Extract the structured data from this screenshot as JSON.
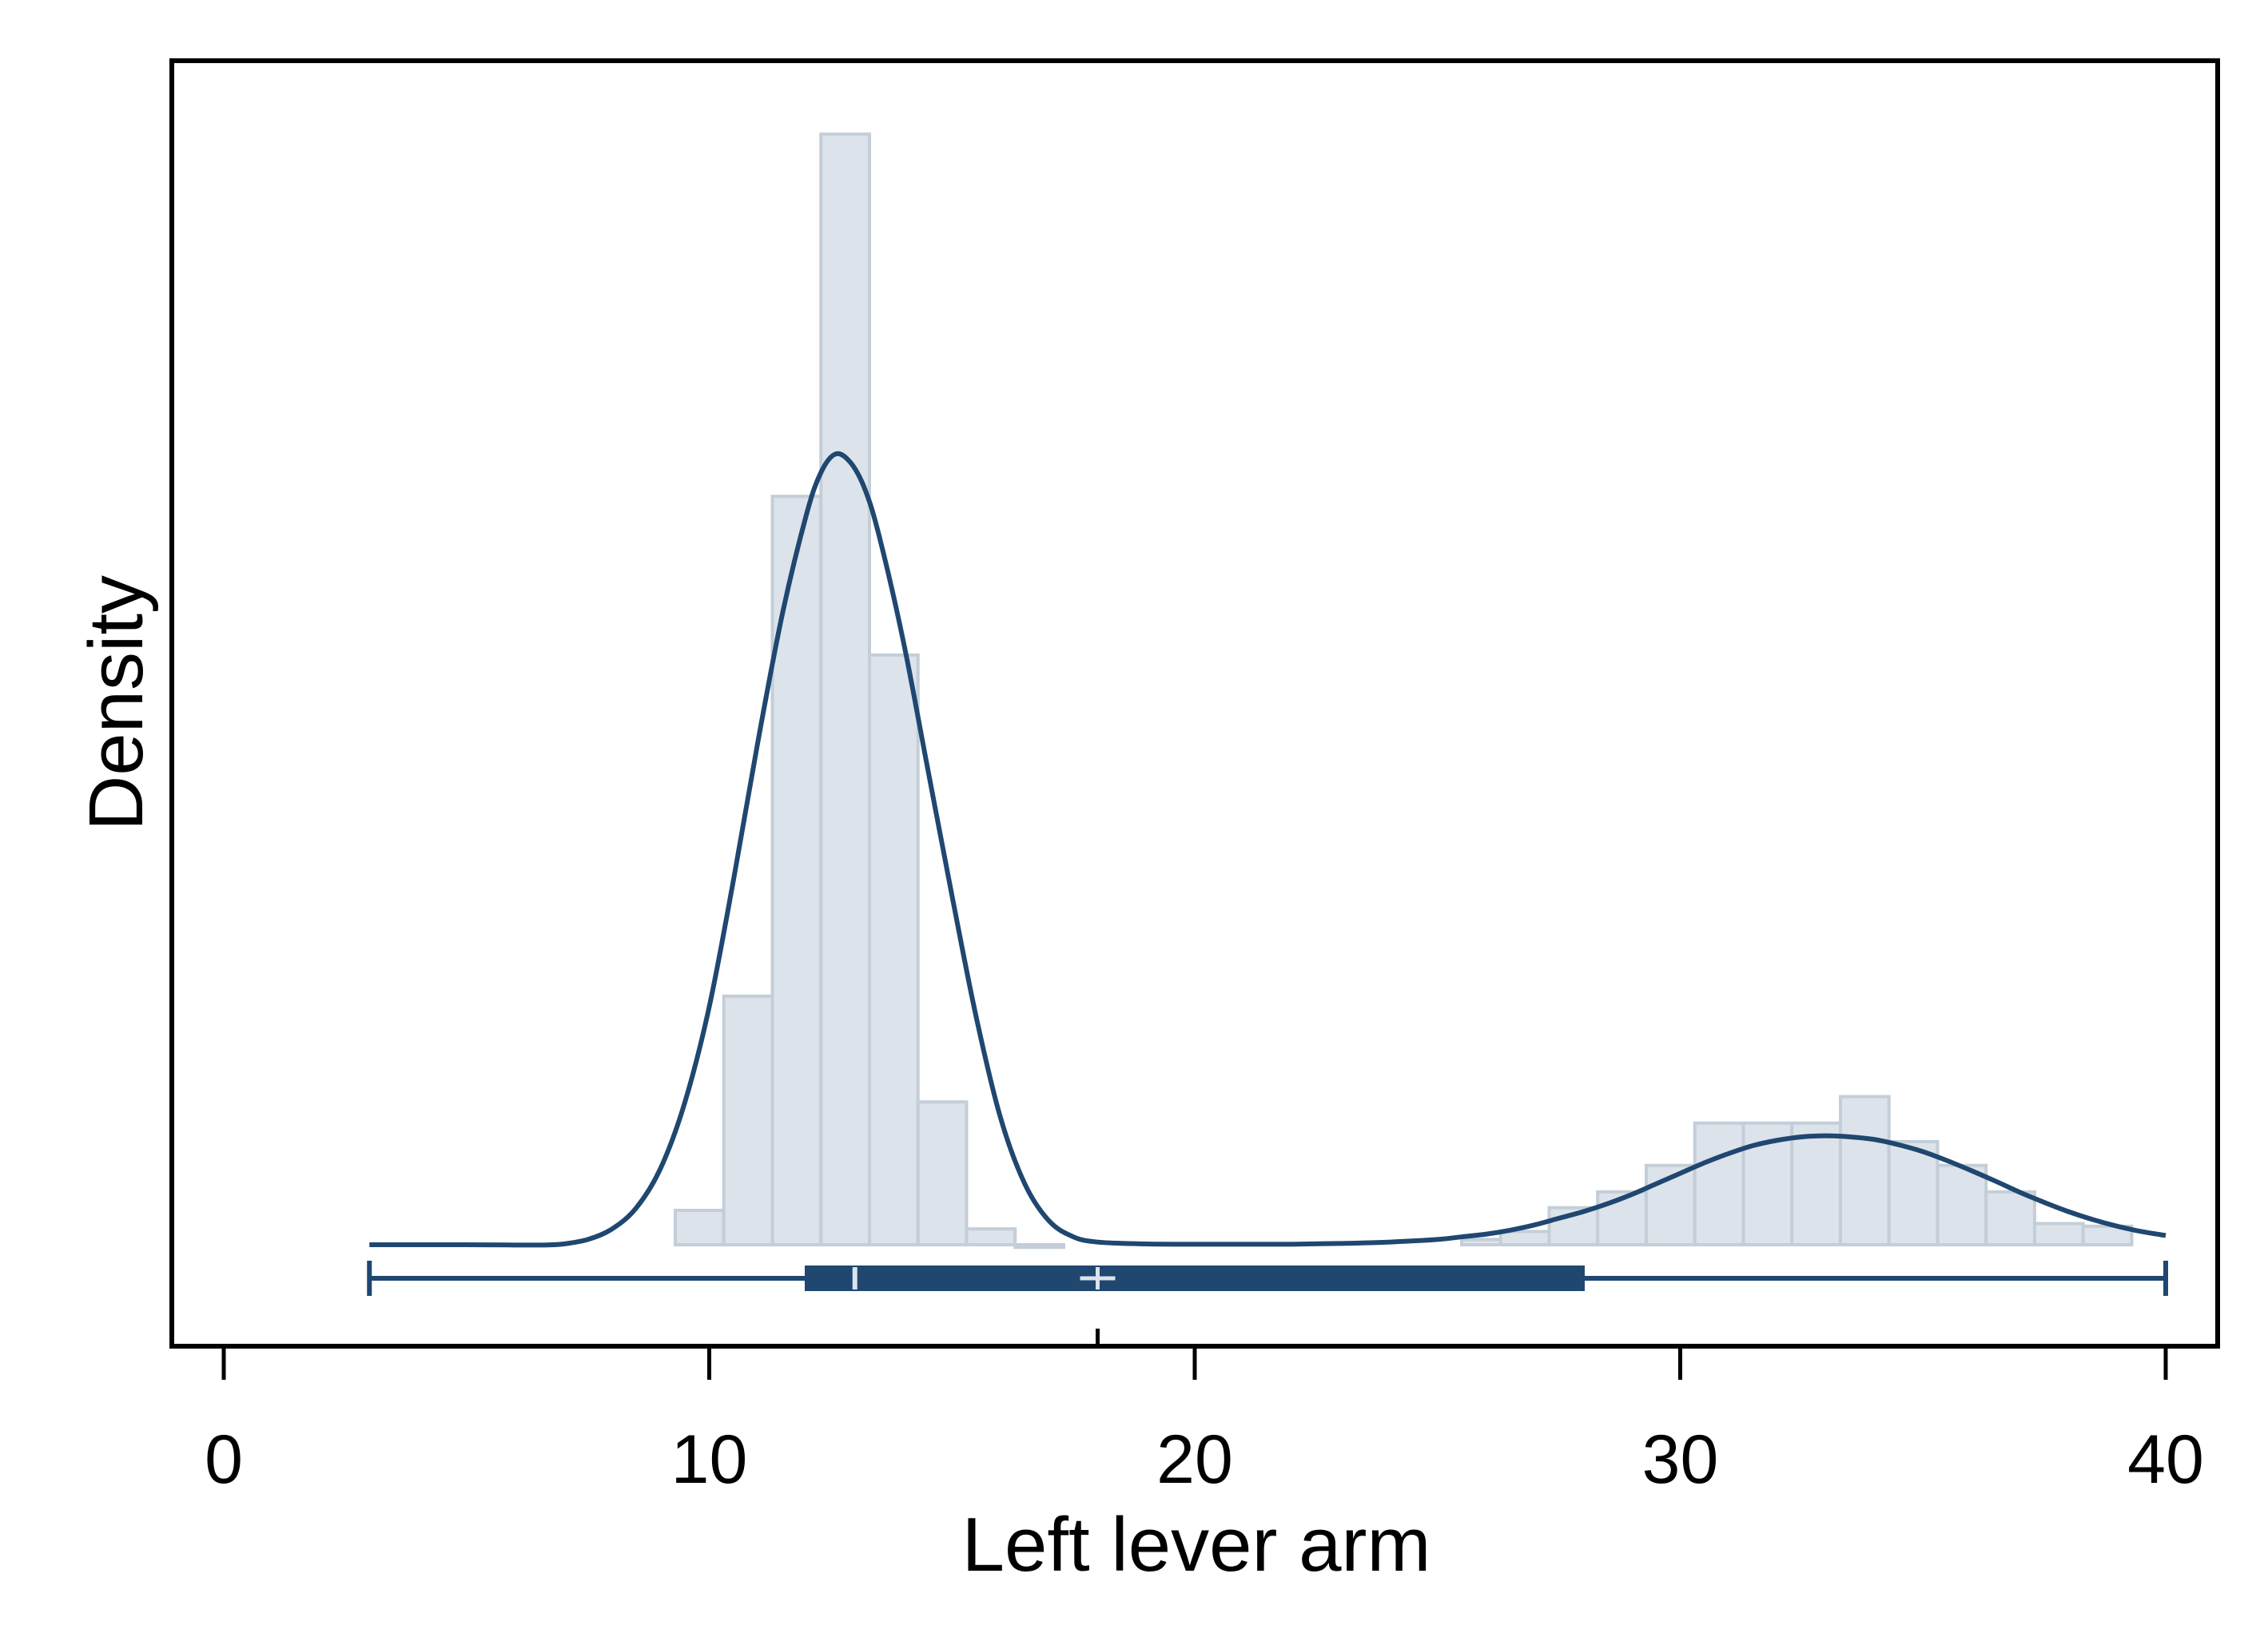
{
  "chart_data": {
    "type": "histogram",
    "title": "",
    "xlabel": "Left lever arm",
    "ylabel": "Density",
    "xlim": [
      -1,
      41
    ],
    "x_ticks": [
      0,
      10,
      20,
      30,
      40
    ],
    "x_tick_labels": [
      "0",
      "10",
      "20",
      "30",
      "40"
    ],
    "y_ticks_shown": false,
    "grid": false,
    "legend": "none",
    "histogram": {
      "bin_width": 1.0,
      "bins": [
        {
          "start": 9.3,
          "end": 10.3,
          "density": 0.013
        },
        {
          "start": 10.3,
          "end": 11.3,
          "density": 0.094
        },
        {
          "start": 11.3,
          "end": 12.3,
          "density": 0.283
        },
        {
          "start": 12.3,
          "end": 13.3,
          "density": 0.42
        },
        {
          "start": 13.3,
          "end": 14.3,
          "density": 0.223
        },
        {
          "start": 14.3,
          "end": 15.3,
          "density": 0.054
        },
        {
          "start": 15.3,
          "end": 16.3,
          "density": 0.006
        },
        {
          "start": 16.3,
          "end": 17.3,
          "density": -0.001
        },
        {
          "start": 25.5,
          "end": 26.3,
          "density": 0.002
        },
        {
          "start": 26.3,
          "end": 27.3,
          "density": 0.005
        },
        {
          "start": 27.3,
          "end": 28.3,
          "density": 0.014
        },
        {
          "start": 28.3,
          "end": 29.3,
          "density": 0.02
        },
        {
          "start": 29.3,
          "end": 30.3,
          "density": 0.03
        },
        {
          "start": 30.3,
          "end": 31.3,
          "density": 0.046
        },
        {
          "start": 31.3,
          "end": 32.3,
          "density": 0.046
        },
        {
          "start": 32.3,
          "end": 33.3,
          "density": 0.046
        },
        {
          "start": 33.3,
          "end": 34.3,
          "density": 0.056
        },
        {
          "start": 34.3,
          "end": 35.3,
          "density": 0.039
        },
        {
          "start": 35.3,
          "end": 36.3,
          "density": 0.03
        },
        {
          "start": 36.3,
          "end": 37.3,
          "density": 0.02
        },
        {
          "start": 37.3,
          "end": 38.3,
          "density": 0.008
        },
        {
          "start": 38.3,
          "end": 39.3,
          "density": 0.007
        }
      ],
      "fill_color": "#dce3ea",
      "edge_color": "#c3ced8"
    },
    "density_curve": {
      "color": "#1f4770",
      "points": [
        [
          3.0,
          0.0
        ],
        [
          4.0,
          0.0
        ],
        [
          5.0,
          0.0
        ],
        [
          6.0,
          -0.0001
        ],
        [
          6.6,
          -0.0001
        ],
        [
          7.0,
          0.0003
        ],
        [
          7.5,
          0.002
        ],
        [
          8.0,
          0.006
        ],
        [
          8.5,
          0.014
        ],
        [
          9.0,
          0.029
        ],
        [
          9.5,
          0.054
        ],
        [
          10.0,
          0.09
        ],
        [
          10.5,
          0.138
        ],
        [
          11.0,
          0.19
        ],
        [
          11.5,
          0.238
        ],
        [
          12.0,
          0.276
        ],
        [
          12.3,
          0.292
        ],
        [
          12.6,
          0.299
        ],
        [
          12.9,
          0.296
        ],
        [
          13.2,
          0.286
        ],
        [
          13.5,
          0.268
        ],
        [
          14.0,
          0.228
        ],
        [
          14.5,
          0.18
        ],
        [
          15.0,
          0.132
        ],
        [
          15.5,
          0.086
        ],
        [
          16.0,
          0.048
        ],
        [
          16.5,
          0.023
        ],
        [
          17.0,
          0.009
        ],
        [
          17.5,
          0.003
        ],
        [
          18.0,
          0.001
        ],
        [
          19.0,
          0.0003
        ],
        [
          20.0,
          0.0002
        ],
        [
          21.0,
          0.0002
        ],
        [
          22.0,
          0.0002
        ],
        [
          23.0,
          0.0005
        ],
        [
          24.0,
          0.001
        ],
        [
          25.0,
          0.002
        ],
        [
          25.5,
          0.003
        ],
        [
          26.0,
          0.004
        ],
        [
          26.5,
          0.0055
        ],
        [
          27.0,
          0.0075
        ],
        [
          27.5,
          0.01
        ],
        [
          28.0,
          0.0125
        ],
        [
          28.5,
          0.0155
        ],
        [
          29.0,
          0.019
        ],
        [
          29.5,
          0.023
        ],
        [
          30.0,
          0.027
        ],
        [
          30.5,
          0.031
        ],
        [
          31.0,
          0.0345
        ],
        [
          31.5,
          0.0375
        ],
        [
          32.0,
          0.0395
        ],
        [
          32.5,
          0.0408
        ],
        [
          33.0,
          0.0412
        ],
        [
          33.5,
          0.0408
        ],
        [
          34.0,
          0.0398
        ],
        [
          34.5,
          0.0378
        ],
        [
          35.0,
          0.0352
        ],
        [
          35.5,
          0.0318
        ],
        [
          36.0,
          0.028
        ],
        [
          36.5,
          0.024
        ],
        [
          37.0,
          0.0198
        ],
        [
          37.5,
          0.016
        ],
        [
          38.0,
          0.0125
        ],
        [
          38.5,
          0.0095
        ],
        [
          39.0,
          0.007
        ],
        [
          39.5,
          0.005
        ],
        [
          40.0,
          0.0035
        ]
      ]
    },
    "box_plot": {
      "min": 3.0,
      "q1": 12.0,
      "median": 13.0,
      "mean": 18.0,
      "q3": 28.0,
      "max": 40.0,
      "color": "#1f4770",
      "marker_color": "#dce3ea"
    },
    "mean_tick": 18.0
  }
}
